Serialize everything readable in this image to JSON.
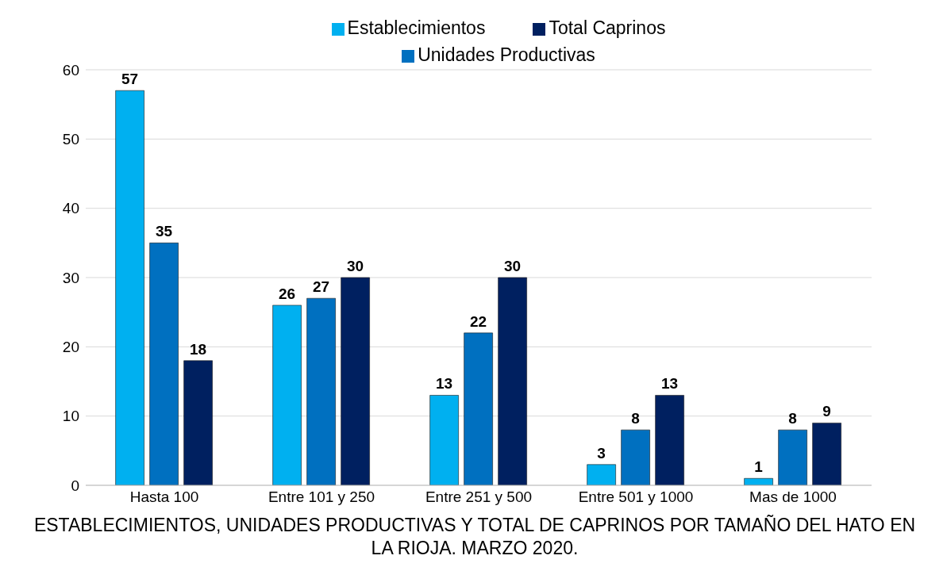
{
  "chart_data": {
    "type": "bar",
    "title": "ESTABLECIMIENTOS, UNIDADES PRODUCTIVAS Y TOTAL DE CAPRINOS POR TAMAÑO DEL HATO EN LA RIOJA. MARZO 2020.",
    "categories": [
      "Hasta 100",
      "Entre 101 y 250",
      "Entre 251 y 500",
      "Entre 501 y 1000",
      "Mas de 1000"
    ],
    "series": [
      {
        "name": "Establecimientos",
        "color": "#00b0f0",
        "values": [
          57,
          26,
          13,
          3,
          1
        ]
      },
      {
        "name": "Unidades Productivas",
        "color": "#0070c0",
        "values": [
          35,
          27,
          22,
          8,
          8
        ]
      },
      {
        "name": "Total Caprinos",
        "color": "#002060",
        "values": [
          18,
          30,
          30,
          13,
          9
        ]
      }
    ],
    "ylim": [
      0,
      60
    ],
    "yticks": [
      0,
      10,
      20,
      30,
      40,
      50,
      60
    ],
    "grid": "y",
    "legend": "top",
    "data_labels": true
  }
}
